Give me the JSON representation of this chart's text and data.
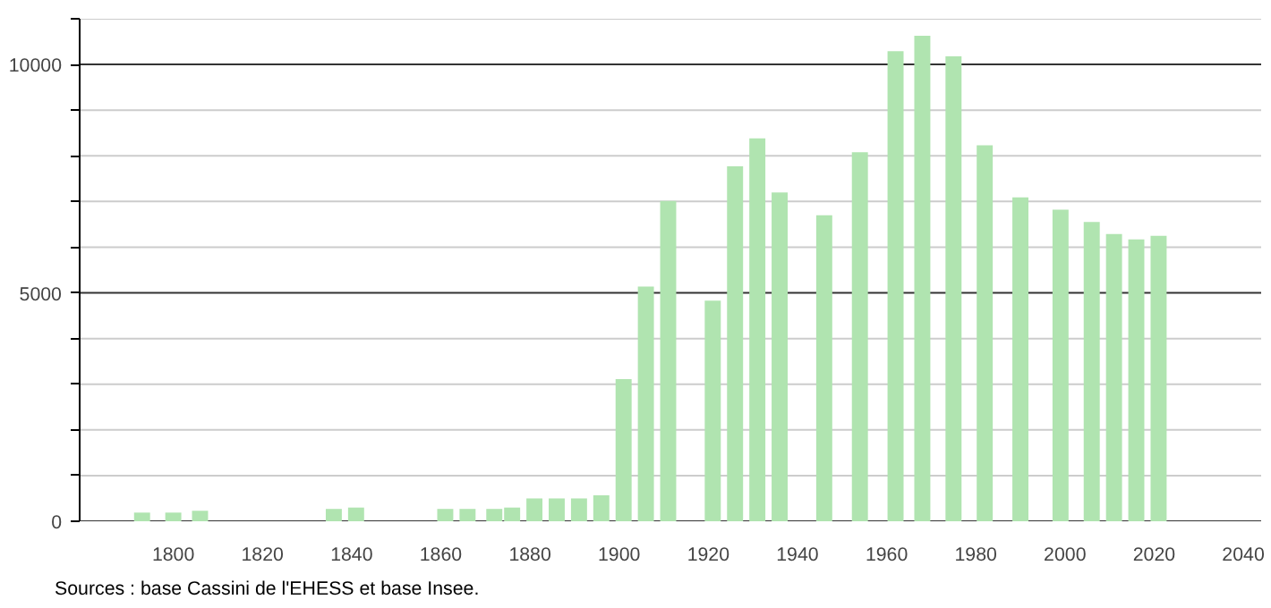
{
  "chart_data": {
    "type": "bar",
    "x": [
      1793,
      1800,
      1806,
      1836,
      1841,
      1861,
      1866,
      1872,
      1876,
      1881,
      1886,
      1891,
      1896,
      1901,
      1906,
      1911,
      1921,
      1926,
      1931,
      1936,
      1946,
      1954,
      1962,
      1968,
      1975,
      1982,
      1990,
      1999,
      2006,
      2011,
      2016,
      2021
    ],
    "values": [
      190,
      190,
      230,
      270,
      300,
      270,
      270,
      270,
      300,
      500,
      500,
      500,
      570,
      3110,
      5140,
      7010,
      4830,
      7770,
      8380,
      7200,
      6700,
      8080,
      10290,
      10630,
      10180,
      8230,
      7090,
      6820,
      6550,
      6290,
      6170,
      6250
    ],
    "color": "#b0e4b0",
    "xlim": [
      1779,
      2044
    ],
    "xticks": [
      1800,
      1820,
      1840,
      1860,
      1880,
      1900,
      1920,
      1940,
      1960,
      1980,
      2000,
      2020,
      2040
    ],
    "ylim": [
      0,
      11000
    ],
    "yticks": [
      0,
      {
        "value": 1000,
        "label": null
      },
      {
        "value": 2000,
        "label": null
      },
      {
        "value": 3000,
        "label": null
      },
      {
        "value": 4000,
        "label": null
      },
      5000,
      {
        "value": 6000,
        "label": null
      },
      {
        "value": 7000,
        "label": null
      },
      {
        "value": 8000,
        "label": null
      },
      {
        "value": 9000,
        "label": null
      },
      10000,
      {
        "value": 11000,
        "label": null
      }
    ],
    "grid": "y",
    "annotations": [
      "Sources : base Cassini de l'EHESS et base Insee."
    ]
  }
}
